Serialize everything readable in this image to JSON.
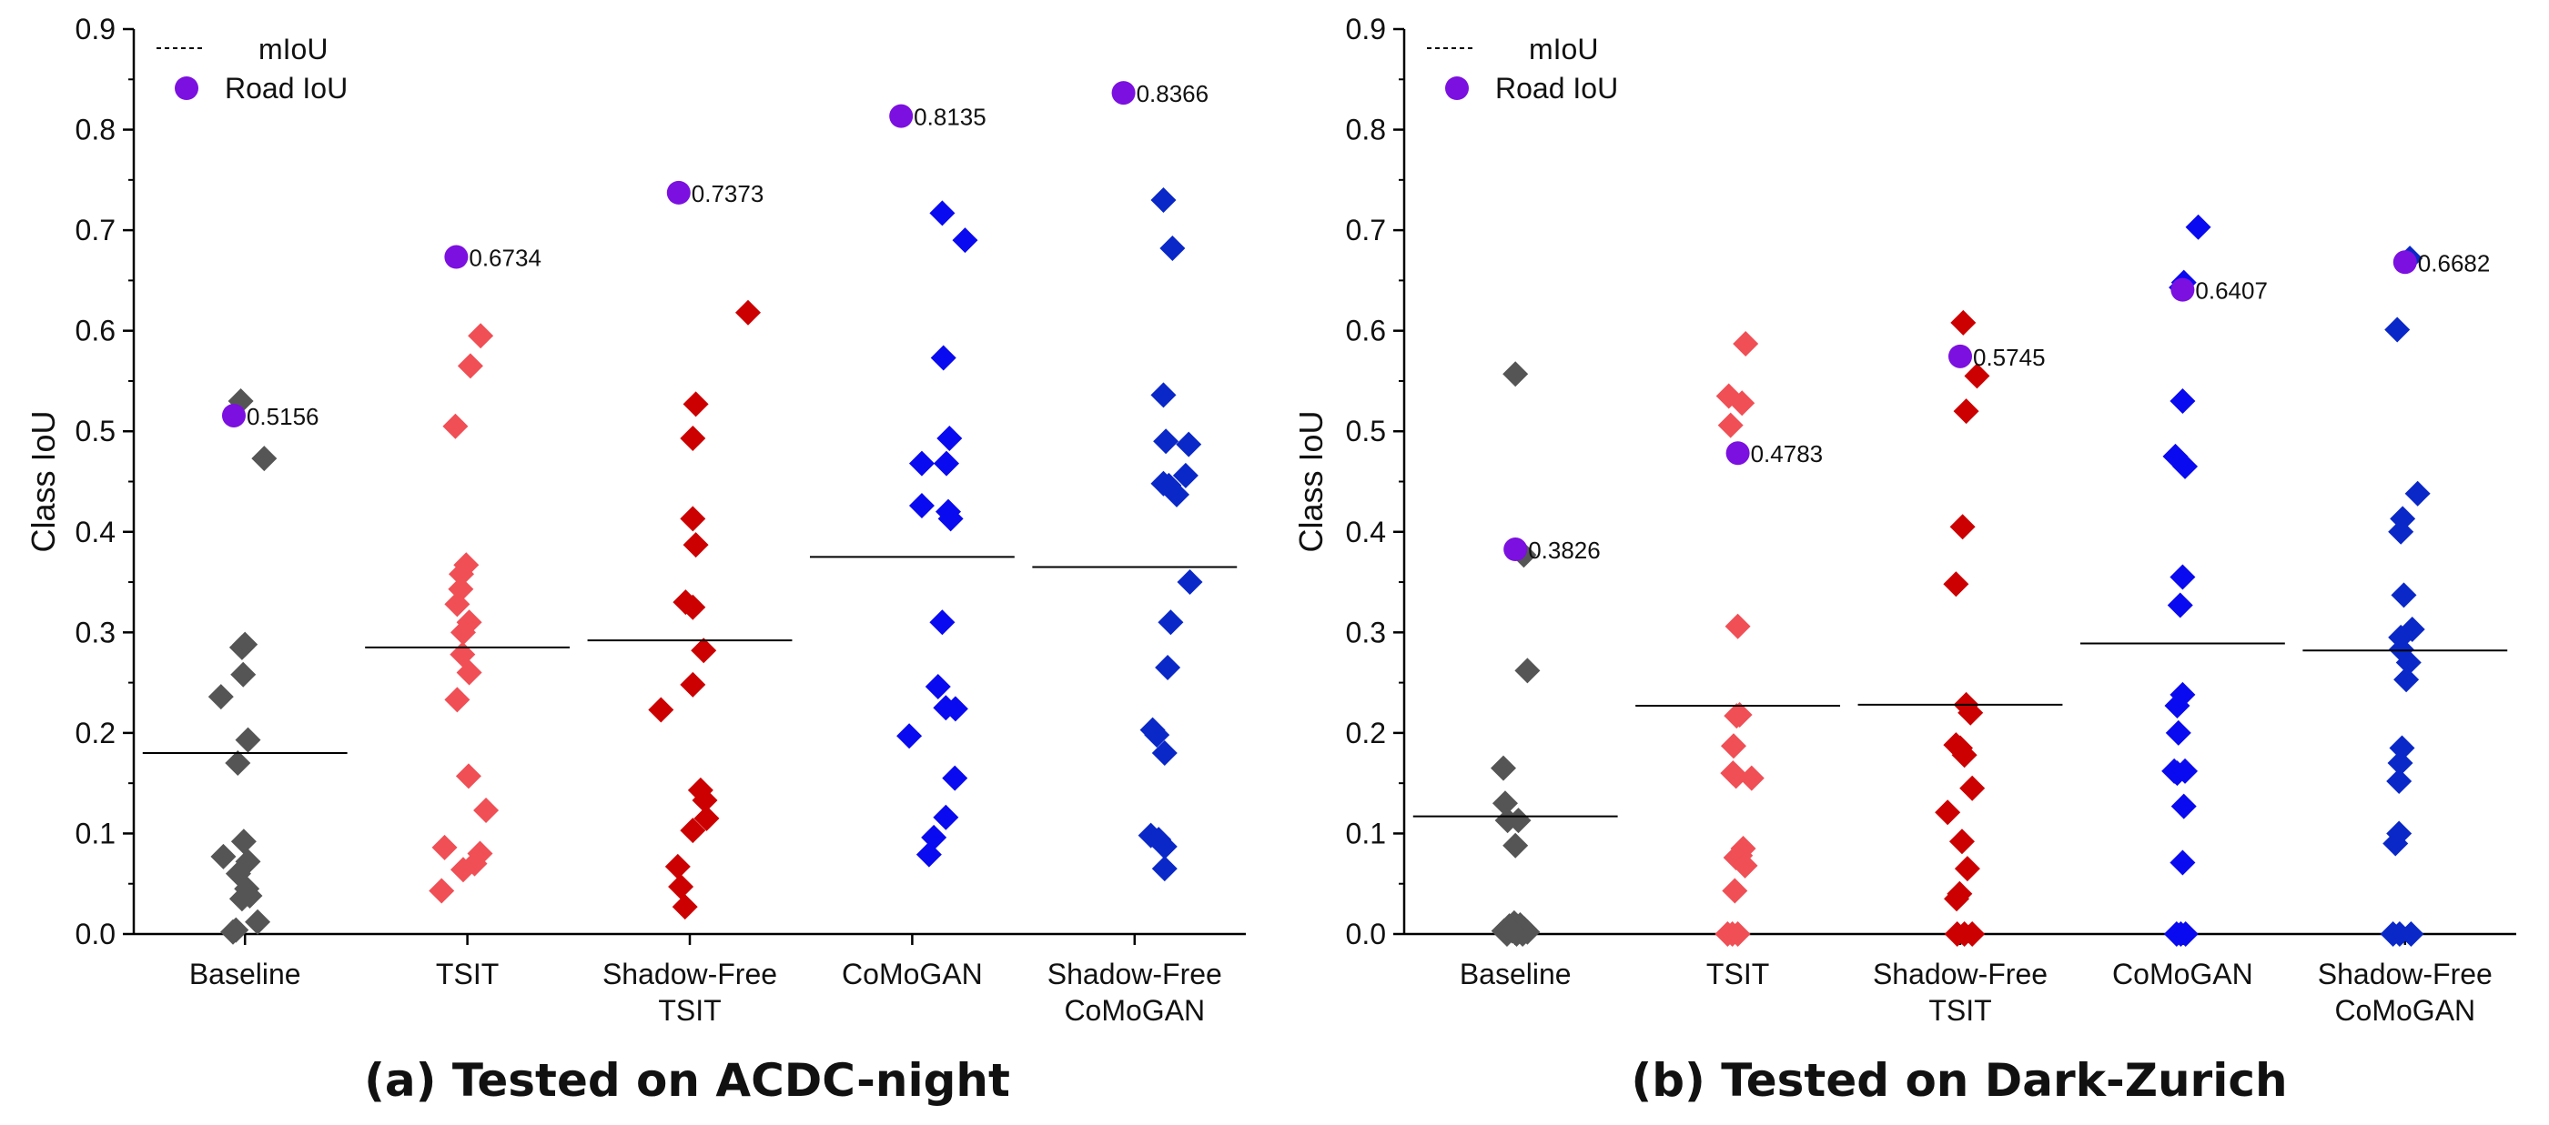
{
  "chart_data": [
    {
      "type": "scatter",
      "caption": "(a) Tested on ACDC-night",
      "ylabel": "Class IoU",
      "xlabel": "",
      "ylim": [
        0,
        0.9
      ],
      "yticks": [
        "0.0",
        "0.1",
        "0.2",
        "0.3",
        "0.4",
        "0.5",
        "0.6",
        "0.7",
        "0.8",
        "0.9"
      ],
      "legend": {
        "position": "top-left",
        "miou_label": "mIoU",
        "road_label": "Road IoU"
      },
      "categories": [
        {
          "name": "Baseline",
          "label_lines": [
            "Baseline"
          ],
          "color": "#555555",
          "miou": 0.18,
          "road_iou": 0.5156,
          "road_label": "0.5156",
          "points": [
            [
              0.43,
              0.53
            ],
            [
              0.82,
              0.473
            ],
            [
              0.45,
              0.285
            ],
            [
              0.5,
              0.288
            ],
            [
              0.47,
              0.258
            ],
            [
              0.1,
              0.236
            ],
            [
              0.55,
              0.193
            ],
            [
              0.38,
              0.17
            ],
            [
              0.14,
              0.077
            ],
            [
              0.48,
              0.092
            ],
            [
              0.55,
              0.072
            ],
            [
              0.39,
              0.06
            ],
            [
              0.53,
              0.045
            ],
            [
              0.45,
              0.035
            ],
            [
              0.58,
              0.038
            ],
            [
              0.71,
              0.012
            ],
            [
              0.35,
              0.004
            ],
            [
              0.3,
              0.002
            ]
          ]
        },
        {
          "name": "TSIT",
          "label_lines": [
            "TSIT"
          ],
          "color": "#f04f55",
          "miou": 0.285,
          "road_iou": 0.6734,
          "road_label": "0.6734",
          "points": [
            [
              0.72,
              0.595
            ],
            [
              0.55,
              0.565
            ],
            [
              0.3,
              0.505
            ],
            [
              0.48,
              0.367
            ],
            [
              0.4,
              0.358
            ],
            [
              0.39,
              0.343
            ],
            [
              0.33,
              0.328
            ],
            [
              0.53,
              0.31
            ],
            [
              0.43,
              0.3
            ],
            [
              0.42,
              0.278
            ],
            [
              0.53,
              0.26
            ],
            [
              0.33,
              0.233
            ],
            [
              0.52,
              0.157
            ],
            [
              0.81,
              0.123
            ],
            [
              0.12,
              0.086
            ],
            [
              0.71,
              0.08
            ],
            [
              0.62,
              0.07
            ],
            [
              0.43,
              0.064
            ],
            [
              0.07,
              0.043
            ]
          ]
        },
        {
          "name": "Shadow-Free TSIT",
          "label_lines": [
            "Shadow-Free",
            "TSIT"
          ],
          "color": "#cc0000",
          "miou": 0.292,
          "road_iou": 0.7373,
          "road_label": "0.7373",
          "points": [
            [
              1.47,
              0.618
            ],
            [
              0.6,
              0.527
            ],
            [
              0.55,
              0.493
            ],
            [
              0.55,
              0.413
            ],
            [
              0.6,
              0.387
            ],
            [
              0.43,
              0.33
            ],
            [
              0.55,
              0.325
            ],
            [
              0.73,
              0.282
            ],
            [
              0.55,
              0.248
            ],
            [
              0.02,
              0.223
            ],
            [
              0.68,
              0.143
            ],
            [
              0.75,
              0.133
            ],
            [
              0.78,
              0.115
            ],
            [
              0.55,
              0.103
            ],
            [
              0.3,
              0.067
            ],
            [
              0.35,
              0.047
            ],
            [
              0.42,
              0.027
            ]
          ]
        },
        {
          "name": "CoMoGAN",
          "label_lines": [
            "CoMoGAN"
          ],
          "color": "#0a0af0",
          "miou": 0.375,
          "road_iou": 0.8135,
          "road_label": "0.8135",
          "points": [
            [
              1.0,
              0.717
            ],
            [
              1.38,
              0.69
            ],
            [
              1.02,
              0.573
            ],
            [
              1.12,
              0.493
            ],
            [
              0.66,
              0.468
            ],
            [
              1.07,
              0.468
            ],
            [
              0.66,
              0.426
            ],
            [
              1.1,
              0.42
            ],
            [
              1.14,
              0.413
            ],
            [
              1.0,
              0.31
            ],
            [
              0.93,
              0.246
            ],
            [
              1.06,
              0.225
            ],
            [
              1.22,
              0.224
            ],
            [
              0.45,
              0.197
            ],
            [
              1.21,
              0.155
            ],
            [
              1.06,
              0.116
            ],
            [
              0.86,
              0.096
            ],
            [
              0.78,
              0.079
            ]
          ]
        },
        {
          "name": "Shadow-Free CoMoGAN",
          "label_lines": [
            "Shadow-Free",
            "CoMoGAN"
          ],
          "color": "#0a28c8",
          "miou": 0.365,
          "road_iou": 0.8366,
          "road_label": "0.8366",
          "points": [
            [
              0.98,
              0.73
            ],
            [
              1.13,
              0.682
            ],
            [
              0.98,
              0.536
            ],
            [
              1.02,
              0.49
            ],
            [
              1.4,
              0.487
            ],
            [
              0.98,
              0.448
            ],
            [
              1.35,
              0.456
            ],
            [
              1.07,
              0.446
            ],
            [
              1.2,
              0.437
            ],
            [
              1.42,
              0.35
            ],
            [
              1.1,
              0.31
            ],
            [
              1.05,
              0.265
            ],
            [
              0.8,
              0.203
            ],
            [
              0.87,
              0.198
            ],
            [
              1.0,
              0.18
            ],
            [
              0.77,
              0.098
            ],
            [
              0.9,
              0.094
            ],
            [
              1.0,
              0.087
            ],
            [
              1.0,
              0.065
            ]
          ]
        }
      ]
    },
    {
      "type": "scatter",
      "caption": "(b) Tested on Dark-Zurich",
      "ylabel": "Class IoU",
      "xlabel": "",
      "ylim": [
        0,
        0.9
      ],
      "yticks": [
        "0.0",
        "0.1",
        "0.2",
        "0.3",
        "0.4",
        "0.5",
        "0.6",
        "0.7",
        "0.8",
        "0.9"
      ],
      "legend": {
        "position": "top-left",
        "miou_label": "mIoU",
        "road_label": "Road IoU"
      },
      "categories": [
        {
          "name": "Baseline",
          "label_lines": [
            "Baseline"
          ],
          "color": "#555555",
          "miou": 0.117,
          "road_iou": 0.3826,
          "road_label": "0.3826",
          "points": [
            [
              0.0,
              0.557
            ],
            [
              0.14,
              0.377
            ],
            [
              0.2,
              0.262
            ],
            [
              -0.2,
              0.165
            ],
            [
              -0.17,
              0.13
            ],
            [
              -0.13,
              0.113
            ],
            [
              0.05,
              0.113
            ],
            [
              0.0,
              0.088
            ],
            [
              -0.19,
              0.003
            ],
            [
              -0.1,
              0.008
            ],
            [
              -0.02,
              0.011
            ],
            [
              0.08,
              0.009
            ],
            [
              0.15,
              0.005
            ],
            [
              -0.14,
              0.0
            ],
            [
              0.02,
              0.0
            ],
            [
              0.12,
              0.0
            ],
            [
              0.2,
              0.002
            ],
            [
              -0.05,
              0.003
            ]
          ]
        },
        {
          "name": "TSIT",
          "label_lines": [
            "TSIT"
          ],
          "color": "#f04f55",
          "miou": 0.227,
          "road_iou": 0.4783,
          "road_label": "0.4783",
          "points": [
            [
              0.13,
              0.587
            ],
            [
              -0.15,
              0.535
            ],
            [
              -0.12,
              0.506
            ],
            [
              0.07,
              0.528
            ],
            [
              0.0,
              0.306
            ],
            [
              0.03,
              0.218
            ],
            [
              -0.02,
              0.217
            ],
            [
              -0.07,
              0.187
            ],
            [
              -0.08,
              0.16
            ],
            [
              -0.03,
              0.157
            ],
            [
              0.23,
              0.155
            ],
            [
              0.09,
              0.085
            ],
            [
              0.04,
              0.078
            ],
            [
              -0.03,
              0.076
            ],
            [
              0.12,
              0.068
            ],
            [
              -0.05,
              0.043
            ],
            [
              -0.17,
              0.0
            ],
            [
              -0.09,
              0.0
            ],
            [
              0.0,
              0.0
            ]
          ]
        },
        {
          "name": "Shadow-Free TSIT",
          "label_lines": [
            "Shadow-Free",
            "TSIT"
          ],
          "color": "#cc0000",
          "miou": 0.228,
          "road_iou": 0.5745,
          "road_label": "0.5745",
          "points": [
            [
              0.05,
              0.608
            ],
            [
              0.28,
              0.555
            ],
            [
              0.1,
              0.52
            ],
            [
              0.04,
              0.405
            ],
            [
              -0.07,
              0.348
            ],
            [
              0.1,
              0.228
            ],
            [
              0.17,
              0.22
            ],
            [
              -0.07,
              0.188
            ],
            [
              0.0,
              0.185
            ],
            [
              0.07,
              0.178
            ],
            [
              0.2,
              0.145
            ],
            [
              -0.21,
              0.121
            ],
            [
              0.03,
              0.092
            ],
            [
              0.12,
              0.065
            ],
            [
              -0.01,
              0.04
            ],
            [
              -0.06,
              0.035
            ],
            [
              -0.05,
              0.0
            ],
            [
              0.07,
              0.0
            ],
            [
              0.2,
              0.0
            ]
          ]
        },
        {
          "name": "CoMoGAN",
          "label_lines": [
            "CoMoGAN"
          ],
          "color": "#0a0af0",
          "miou": 0.289,
          "road_iou": 0.6407,
          "road_label": "0.6407",
          "points": [
            [
              0.26,
              0.703
            ],
            [
              0.02,
              0.648
            ],
            [
              -0.02,
              0.643
            ],
            [
              0.0,
              0.53
            ],
            [
              -0.12,
              0.475
            ],
            [
              0.04,
              0.465
            ],
            [
              0.0,
              0.355
            ],
            [
              -0.04,
              0.327
            ],
            [
              0.0,
              0.238
            ],
            [
              -0.09,
              0.227
            ],
            [
              -0.07,
              0.2
            ],
            [
              -0.14,
              0.162
            ],
            [
              -0.09,
              0.16
            ],
            [
              0.04,
              0.162
            ],
            [
              0.02,
              0.127
            ],
            [
              0.0,
              0.071
            ],
            [
              -0.1,
              0.0
            ],
            [
              -0.03,
              0.0
            ],
            [
              0.05,
              0.0
            ]
          ]
        },
        {
          "name": "Shadow-Free CoMoGAN",
          "label_lines": [
            "Shadow-Free",
            "CoMoGAN"
          ],
          "color": "#0a28c8",
          "miou": 0.282,
          "road_iou": 0.6682,
          "road_label": "0.6682",
          "points": [
            [
              0.08,
              0.672
            ],
            [
              -0.13,
              0.601
            ],
            [
              0.21,
              0.438
            ],
            [
              -0.04,
              0.413
            ],
            [
              -0.07,
              0.4
            ],
            [
              -0.02,
              0.337
            ],
            [
              0.12,
              0.303
            ],
            [
              -0.07,
              0.295
            ],
            [
              -0.06,
              0.283
            ],
            [
              0.06,
              0.27
            ],
            [
              0.02,
              0.253
            ],
            [
              -0.05,
              0.185
            ],
            [
              -0.08,
              0.17
            ],
            [
              -0.1,
              0.152
            ],
            [
              -0.1,
              0.1
            ],
            [
              -0.16,
              0.09
            ],
            [
              -0.2,
              0.0
            ],
            [
              -0.09,
              0.0
            ],
            [
              0.1,
              0.0
            ]
          ]
        }
      ]
    }
  ]
}
